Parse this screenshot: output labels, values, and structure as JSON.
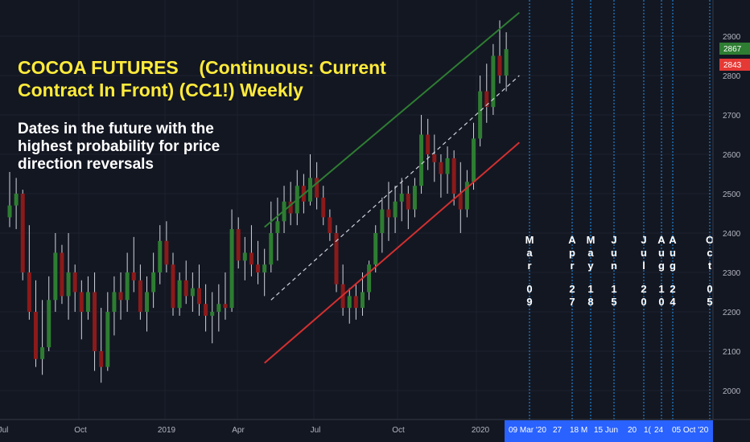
{
  "title": "COCOA FUTURES    (Continuous: Current\nContract In Front) (CC1!) Weekly",
  "subtitle": "Dates in the future with the\nhighest probability for price\ndirection reversals",
  "colors": {
    "background": "#131722",
    "up": "#2e7d32",
    "down": "#8b1a1a",
    "wick": "#d1d4dc",
    "green_line": "#2e7d32",
    "red_line": "#d32f2f",
    "dash_line": "#d1d4dc",
    "date_line": "#2196f3",
    "price_green": "#2e7d32",
    "price_red": "#e53935"
  },
  "chart_data": {
    "type": "candlestick",
    "interval": "Weekly",
    "ylim": [
      1930,
      3000
    ],
    "y_ticks": [
      2000,
      2100,
      2200,
      2300,
      2400,
      2500,
      2600,
      2700,
      2800,
      2900
    ],
    "x_ticks": [
      "Jul",
      "Oct",
      "2019",
      "Apr",
      "Jul",
      "Oct",
      "2020"
    ],
    "last_prices": [
      {
        "label": "2867",
        "value": 2867,
        "color": "green"
      },
      {
        "label": "2843",
        "value": 2843,
        "color": "red"
      }
    ],
    "candles": [
      [
        2440,
        2555,
        2415,
        2470
      ],
      [
        2470,
        2540,
        2410,
        2500
      ],
      [
        2500,
        2510,
        2280,
        2300
      ],
      [
        2300,
        2420,
        2180,
        2200
      ],
      [
        2200,
        2280,
        2060,
        2080
      ],
      [
        2080,
        2230,
        2040,
        2110
      ],
      [
        2110,
        2290,
        2100,
        2230
      ],
      [
        2230,
        2400,
        2200,
        2350
      ],
      [
        2350,
        2370,
        2220,
        2240
      ],
      [
        2240,
        2400,
        2180,
        2300
      ],
      [
        2300,
        2320,
        2200,
        2250
      ],
      [
        2250,
        2280,
        2130,
        2200
      ],
      [
        2200,
        2290,
        2180,
        2250
      ],
      [
        2250,
        2300,
        2050,
        2100
      ],
      [
        2100,
        2210,
        2020,
        2060
      ],
      [
        2060,
        2250,
        2050,
        2200
      ],
      [
        2200,
        2290,
        2140,
        2250
      ],
      [
        2250,
        2300,
        2180,
        2230
      ],
      [
        2230,
        2350,
        2200,
        2300
      ],
      [
        2300,
        2390,
        2250,
        2280
      ],
      [
        2280,
        2320,
        2180,
        2200
      ],
      [
        2200,
        2290,
        2150,
        2250
      ],
      [
        2250,
        2350,
        2210,
        2300
      ],
      [
        2300,
        2420,
        2270,
        2380
      ],
      [
        2380,
        2430,
        2300,
        2320
      ],
      [
        2320,
        2350,
        2190,
        2210
      ],
      [
        2210,
        2300,
        2190,
        2280
      ],
      [
        2280,
        2330,
        2220,
        2240
      ],
      [
        2240,
        2300,
        2200,
        2260
      ],
      [
        2260,
        2320,
        2190,
        2220
      ],
      [
        2220,
        2270,
        2150,
        2190
      ],
      [
        2190,
        2250,
        2120,
        2200
      ],
      [
        2200,
        2270,
        2150,
        2220
      ],
      [
        2220,
        2300,
        2180,
        2210
      ],
      [
        2210,
        2460,
        2200,
        2410
      ],
      [
        2410,
        2440,
        2310,
        2330
      ],
      [
        2330,
        2390,
        2280,
        2350
      ],
      [
        2350,
        2420,
        2290,
        2320
      ],
      [
        2320,
        2380,
        2270,
        2300
      ],
      [
        2300,
        2360,
        2240,
        2320
      ],
      [
        2320,
        2480,
        2300,
        2400
      ],
      [
        2400,
        2490,
        2330,
        2430
      ],
      [
        2430,
        2520,
        2400,
        2480
      ],
      [
        2480,
        2530,
        2420,
        2450
      ],
      [
        2450,
        2560,
        2420,
        2520
      ],
      [
        2520,
        2550,
        2450,
        2480
      ],
      [
        2480,
        2600,
        2470,
        2540
      ],
      [
        2540,
        2580,
        2460,
        2490
      ],
      [
        2490,
        2520,
        2420,
        2440
      ],
      [
        2440,
        2460,
        2380,
        2400
      ],
      [
        2400,
        2420,
        2250,
        2270
      ],
      [
        2270,
        2320,
        2190,
        2210
      ],
      [
        2210,
        2260,
        2170,
        2240
      ],
      [
        2240,
        2270,
        2180,
        2210
      ],
      [
        2210,
        2300,
        2190,
        2250
      ],
      [
        2250,
        2330,
        2230,
        2320
      ],
      [
        2320,
        2420,
        2300,
        2400
      ],
      [
        2400,
        2490,
        2350,
        2460
      ],
      [
        2460,
        2530,
        2380,
        2440
      ],
      [
        2440,
        2520,
        2400,
        2480
      ],
      [
        2480,
        2540,
        2430,
        2500
      ],
      [
        2500,
        2520,
        2410,
        2460
      ],
      [
        2460,
        2540,
        2440,
        2520
      ],
      [
        2520,
        2700,
        2500,
        2650
      ],
      [
        2650,
        2690,
        2560,
        2600
      ],
      [
        2600,
        2650,
        2530,
        2580
      ],
      [
        2580,
        2600,
        2490,
        2550
      ],
      [
        2550,
        2620,
        2500,
        2590
      ],
      [
        2590,
        2610,
        2470,
        2500
      ],
      [
        2500,
        2580,
        2400,
        2460
      ],
      [
        2460,
        2560,
        2440,
        2530
      ],
      [
        2530,
        2680,
        2510,
        2640
      ],
      [
        2640,
        2800,
        2620,
        2760
      ],
      [
        2760,
        2830,
        2680,
        2720
      ],
      [
        2720,
        2880,
        2700,
        2850
      ],
      [
        2850,
        2940,
        2780,
        2800
      ],
      [
        2800,
        2910,
        2760,
        2867
      ]
    ],
    "trend_lines": [
      {
        "name": "upper-channel",
        "from": [
          39,
          2415
        ],
        "to": [
          78,
          2960
        ],
        "color": "green"
      },
      {
        "name": "lower-channel",
        "from": [
          39,
          2070
        ],
        "to": [
          78,
          2630
        ],
        "color": "red"
      },
      {
        "name": "mid-trend",
        "from": [
          40,
          2230
        ],
        "to": [
          78,
          2800
        ],
        "color": "white-dashed"
      }
    ],
    "reversal_dates": [
      {
        "vertical": "Mar\n09",
        "axis": "09 Mar '20"
      },
      {
        "vertical": "Apr\n27",
        "axis": "27"
      },
      {
        "vertical": "May\n18",
        "axis": "18 M"
      },
      {
        "vertical": "Jun\n15",
        "axis": "15 Jun"
      },
      {
        "vertical": "Jul\n20",
        "axis": "20"
      },
      {
        "vertical": "Aug\n10",
        "axis": "1("
      },
      {
        "vertical": "Aug\n24",
        "axis": "24"
      },
      {
        "vertical": "Oct\n05",
        "axis": "05 Oct '20"
      }
    ]
  }
}
